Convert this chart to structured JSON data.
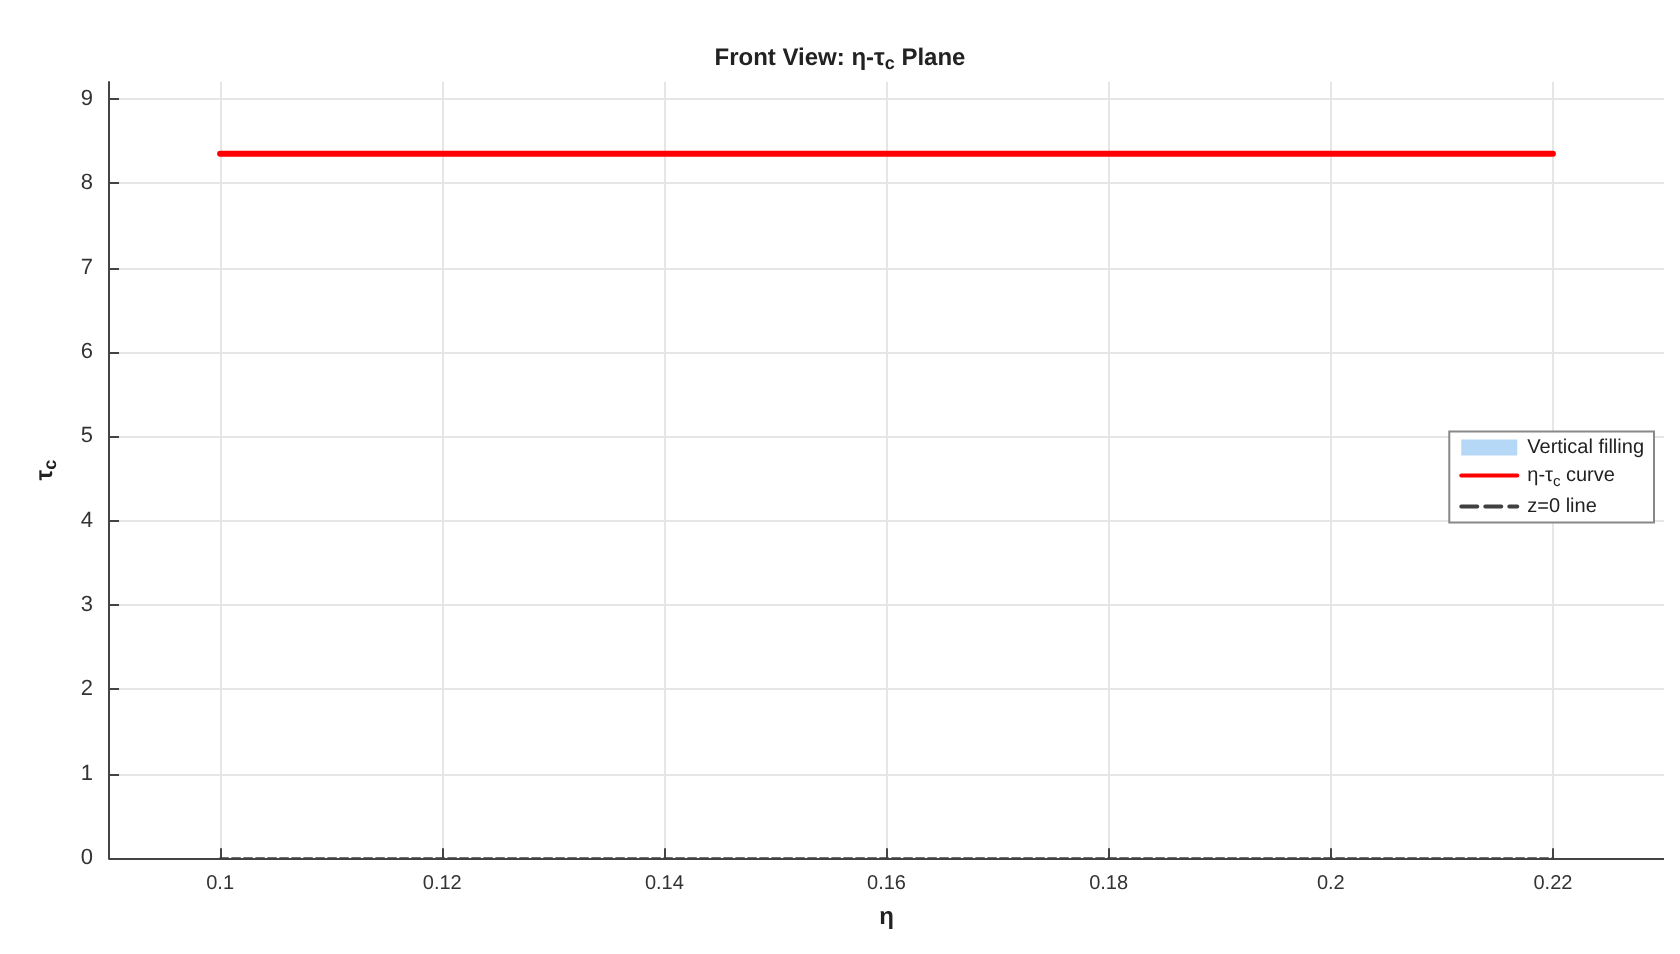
{
  "chart_data": {
    "type": "line",
    "title": "Front View: η-τ$_{c}$ Plane",
    "xlabel": "η",
    "ylabel": "τ$_{c}$",
    "x": [
      0.1,
      0.22
    ],
    "series": [
      {
        "name": "Vertical filling",
        "type": "area",
        "color": "#b5d8f7",
        "values": [
          null,
          null
        ]
      },
      {
        "name": "η-τ$_{c}$ curve",
        "color": "#ff0000",
        "values": [
          8.35,
          8.35
        ]
      },
      {
        "name": "z=0 line",
        "color": "#404040",
        "line_style": "dashed",
        "values": [
          0,
          0
        ]
      }
    ],
    "xlim": [
      0.09,
      0.23
    ],
    "xticks": [
      0.1,
      0.12,
      0.14,
      0.16,
      0.18,
      0.2,
      0.22
    ],
    "ylim": [
      0,
      9.2
    ],
    "yticks": [
      0,
      1,
      2,
      3,
      4,
      5,
      6,
      7,
      8,
      9
    ],
    "grid": true,
    "legend": "right",
    "marker": "none"
  }
}
